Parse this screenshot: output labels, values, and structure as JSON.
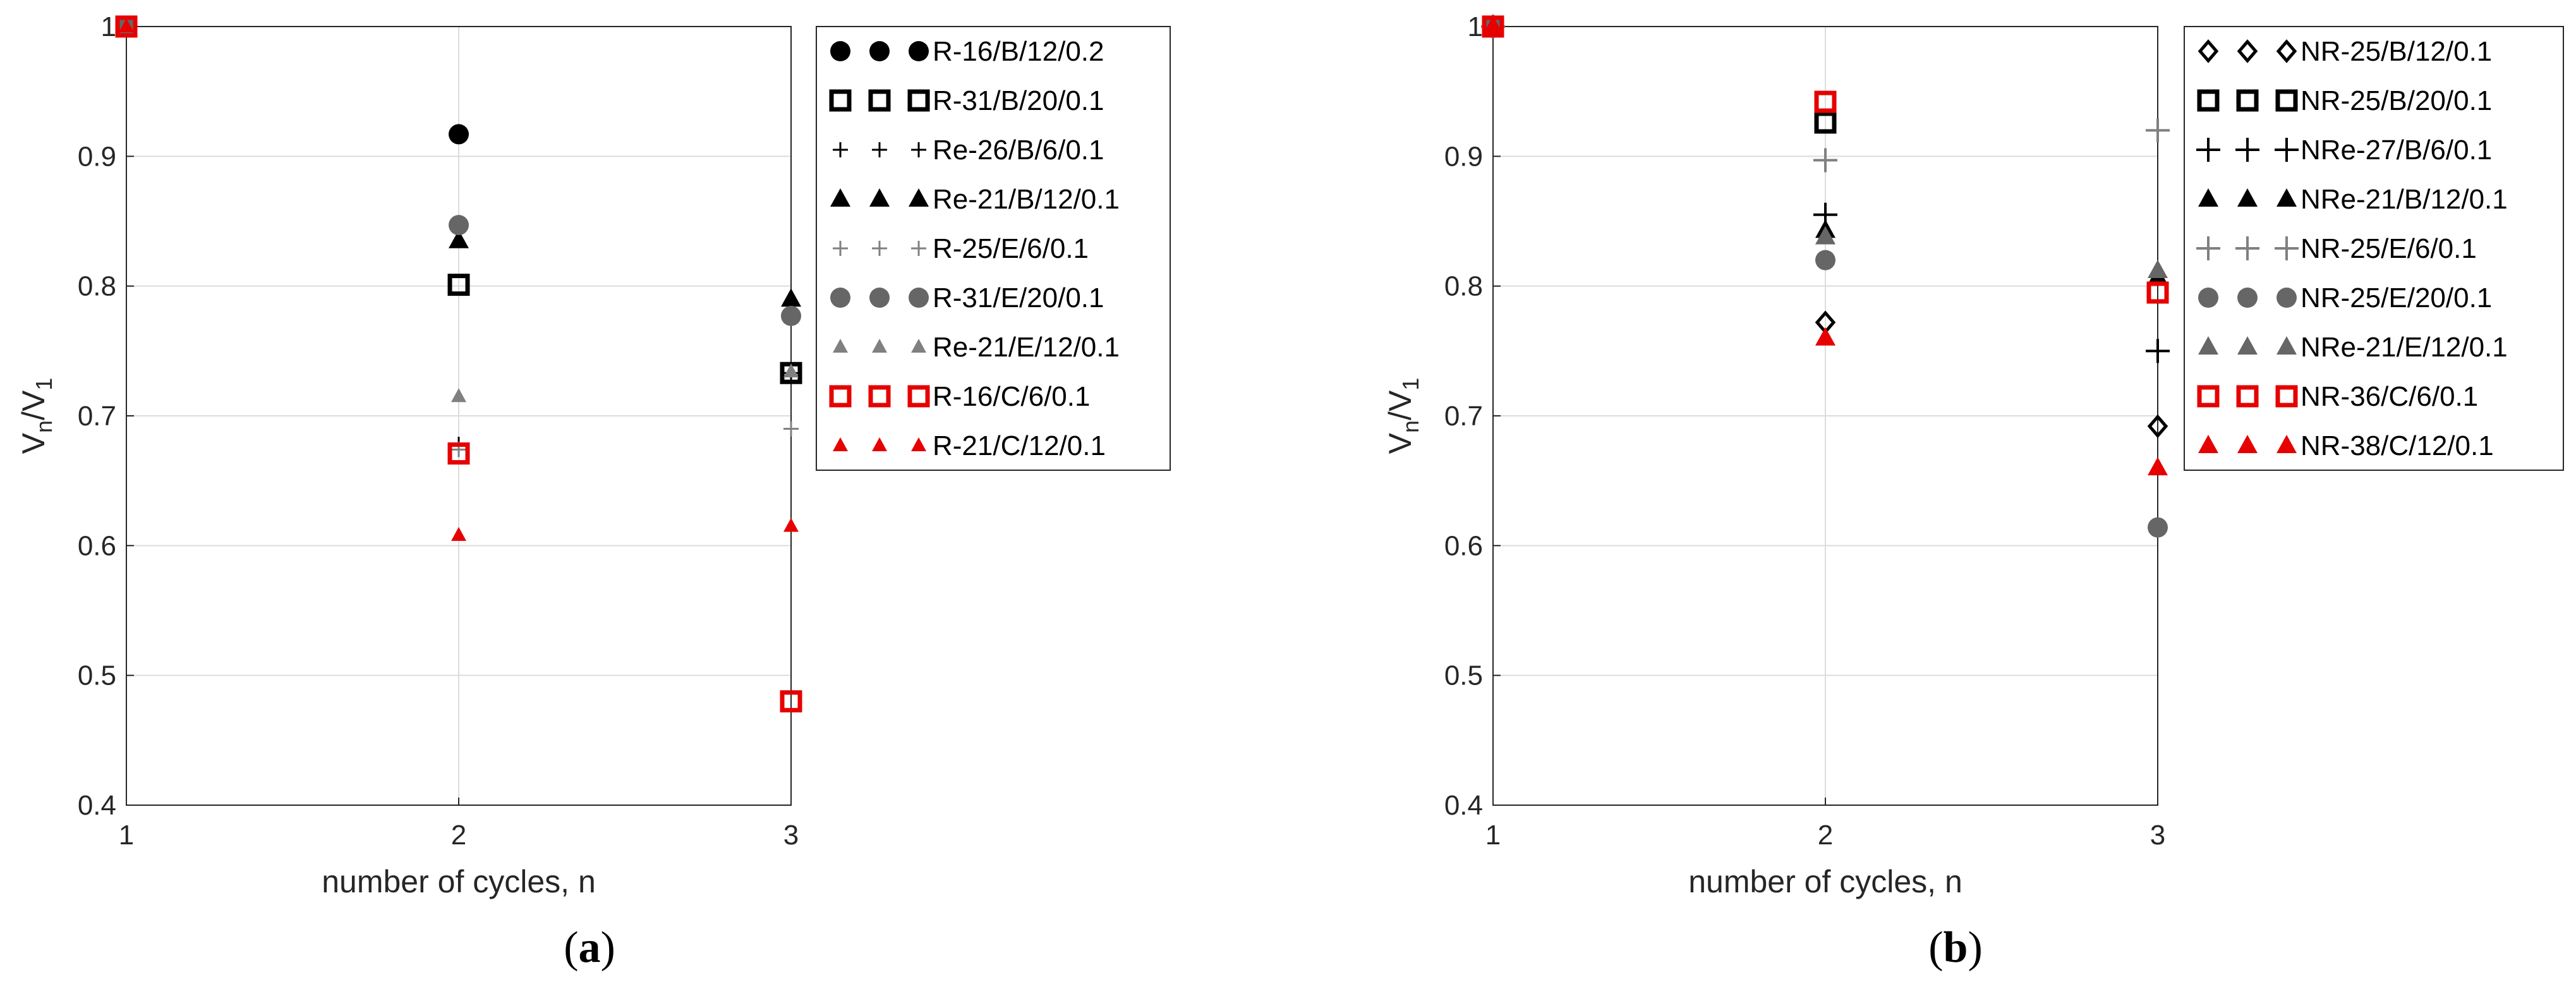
{
  "figure": {
    "panel_labels": [
      "(a)",
      "(b)"
    ],
    "panel_label_parts": [
      {
        "open": "(",
        "letter": "a",
        "close": ")"
      },
      {
        "open": "(",
        "letter": "b",
        "close": ")"
      }
    ]
  },
  "chart_data": [
    {
      "type": "scatter",
      "panel": "a",
      "xlabel": "number of cycles, n",
      "ylabel": "V_n/V_1",
      "ylabel_parts": {
        "base1": "V",
        "sub1": "n",
        "slash": "/",
        "base2": "V",
        "sub2": "1"
      },
      "xlim": [
        1,
        3
      ],
      "ylim": [
        0.4,
        1.0
      ],
      "xticks": [
        1,
        2,
        3
      ],
      "xtick_labels": [
        "1",
        "2",
        "3"
      ],
      "yticks": [
        0.4,
        0.5,
        0.6,
        0.7,
        0.8,
        0.9,
        1.0
      ],
      "ytick_labels": [
        "0.4",
        "0.5",
        "0.6",
        "0.7",
        "0.8",
        "0.9",
        "1"
      ],
      "grid": true,
      "legend_position": "outside-right-top",
      "series": [
        {
          "name": "R-16/B/12/0.2",
          "marker": "circle-filled",
          "color": "#000000",
          "points": [
            [
              1,
              1.0
            ],
            [
              2,
              0.917
            ]
          ]
        },
        {
          "name": "R-31/B/20/0.1",
          "marker": "square-open",
          "color": "#000000",
          "points": [
            [
              1,
              1.0
            ],
            [
              2,
              0.801
            ],
            [
              3,
              0.733
            ]
          ]
        },
        {
          "name": "Re-26/B/6/0.1",
          "marker": "plus-small",
          "color": "#000000",
          "points": [
            [
              1,
              1.0
            ],
            [
              2,
              0.678
            ],
            [
              3,
              0.733
            ]
          ]
        },
        {
          "name": "Re-21/B/12/0.1",
          "marker": "triangle-filled",
          "color": "#000000",
          "points": [
            [
              1,
              1.0
            ],
            [
              2,
              0.835
            ],
            [
              3,
              0.79
            ]
          ]
        },
        {
          "name": "R-25/E/6/0.1",
          "marker": "plus-small",
          "color": "#808080",
          "points": [
            [
              1,
              1.0
            ],
            [
              2,
              0.674
            ],
            [
              3,
              0.69
            ]
          ]
        },
        {
          "name": "R-31/E/20/0.1",
          "marker": "circle-filled",
          "color": "#666666",
          "points": [
            [
              1,
              1.0
            ],
            [
              2,
              0.847
            ],
            [
              3,
              0.777
            ]
          ]
        },
        {
          "name": "Re-21/E/12/0.1",
          "marker": "triangle-filled-small",
          "color": "#808080",
          "points": [
            [
              1,
              1.0
            ],
            [
              2,
              0.715
            ],
            [
              3,
              0.734
            ]
          ]
        },
        {
          "name": "R-16/C/6/0.1",
          "marker": "square-open",
          "color": "#e60000",
          "points": [
            [
              1,
              1.0
            ],
            [
              2,
              0.671
            ],
            [
              3,
              0.48
            ]
          ]
        },
        {
          "name": "R-21/C/12/0.1",
          "marker": "triangle-filled-small",
          "color": "#e60000",
          "points": [
            [
              1,
              1.0
            ],
            [
              2,
              0.608
            ],
            [
              3,
              0.615
            ]
          ]
        }
      ]
    },
    {
      "type": "scatter",
      "panel": "b",
      "xlabel": "number of cycles, n",
      "ylabel": "V_n/V_1",
      "ylabel_parts": {
        "base1": "V",
        "sub1": "n",
        "slash": "/",
        "base2": "V",
        "sub2": "1"
      },
      "xlim": [
        1,
        3
      ],
      "ylim": [
        0.4,
        1.0
      ],
      "xticks": [
        1,
        2,
        3
      ],
      "xtick_labels": [
        "1",
        "2",
        "3"
      ],
      "yticks": [
        0.4,
        0.5,
        0.6,
        0.7,
        0.8,
        0.9,
        1.0
      ],
      "ytick_labels": [
        "0.4",
        "0.5",
        "0.6",
        "0.7",
        "0.8",
        "0.9",
        "1"
      ],
      "grid": true,
      "legend_position": "outside-right-top",
      "series": [
        {
          "name": "NR-25/B/12/0.1",
          "marker": "diamond-open",
          "color": "#000000",
          "points": [
            [
              1,
              1.0
            ],
            [
              2,
              0.772
            ],
            [
              3,
              0.692
            ]
          ]
        },
        {
          "name": "NR-25/B/20/0.1",
          "marker": "square-open",
          "color": "#000000",
          "points": [
            [
              1,
              1.0
            ],
            [
              2,
              0.926
            ]
          ]
        },
        {
          "name": "NRe-27/B/6/0.1",
          "marker": "plus",
          "color": "#000000",
          "points": [
            [
              1,
              1.0
            ],
            [
              2,
              0.855
            ],
            [
              3,
              0.75
            ]
          ]
        },
        {
          "name": "NRe-21/B/12/0.1",
          "marker": "triangle-filled",
          "color": "#000000",
          "points": [
            [
              1,
              1.0
            ],
            [
              2,
              0.843
            ],
            [
              3,
              0.807
            ]
          ]
        },
        {
          "name": "NR-25/E/6/0.1",
          "marker": "plus",
          "color": "#808080",
          "points": [
            [
              1,
              1.0
            ],
            [
              2,
              0.897
            ],
            [
              3,
              0.92
            ]
          ]
        },
        {
          "name": "NR-25/E/20/0.1",
          "marker": "circle-filled",
          "color": "#666666",
          "points": [
            [
              1,
              1.0
            ],
            [
              2,
              0.82
            ],
            [
              3,
              0.614
            ]
          ]
        },
        {
          "name": "NRe-21/E/12/0.1",
          "marker": "triangle-filled",
          "color": "#666666",
          "points": [
            [
              1,
              1.0
            ],
            [
              2,
              0.838
            ],
            [
              3,
              0.812
            ]
          ]
        },
        {
          "name": "NR-36/C/6/0.1",
          "marker": "square-open",
          "color": "#e60000",
          "points": [
            [
              1,
              1.0
            ],
            [
              2,
              0.942
            ],
            [
              3,
              0.795
            ]
          ]
        },
        {
          "name": "NR-38/C/12/0.1",
          "marker": "triangle-filled",
          "color": "#e60000",
          "points": [
            [
              1,
              1.0
            ],
            [
              2,
              0.76
            ],
            [
              3,
              0.66
            ]
          ]
        }
      ]
    }
  ]
}
